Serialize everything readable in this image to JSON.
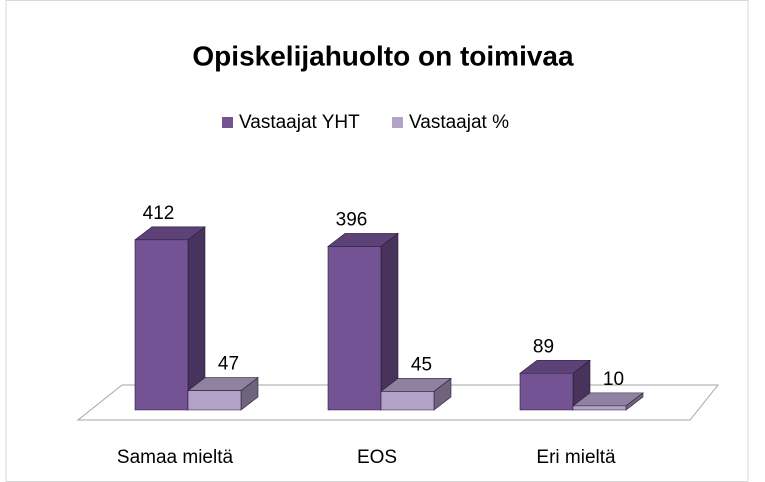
{
  "chart_data": {
    "type": "bar3d",
    "title": "Opiskelijahuolto on toimivaa",
    "categories": [
      "Samaa mieltä",
      "EOS",
      "Eri mieltä"
    ],
    "series": [
      {
        "name": "Vastaajat YHT",
        "color": "#735393",
        "values": [
          412,
          396,
          89
        ]
      },
      {
        "name": "Vastaajat %",
        "color": "#b3a2c8",
        "values": [
          47,
          45,
          10
        ]
      }
    ],
    "legend": "top"
  }
}
